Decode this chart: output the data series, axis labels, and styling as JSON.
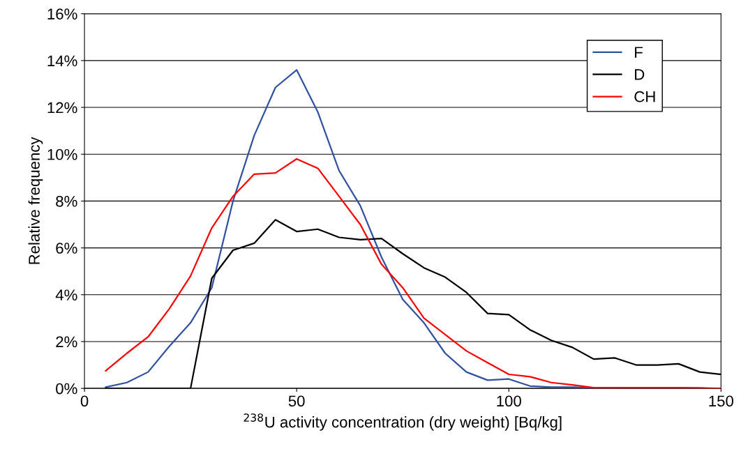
{
  "chart_data": {
    "type": "line",
    "xlabel": "$^{238}$U activity concentration (dry weight) [Bq/kg]",
    "ylabel": "Relative frequency",
    "x": [
      5,
      10,
      15,
      20,
      25,
      30,
      35,
      40,
      45,
      50,
      55,
      60,
      65,
      70,
      75,
      80,
      85,
      90,
      95,
      100,
      105,
      110,
      115,
      120,
      125,
      130,
      135,
      140,
      145,
      150
    ],
    "series": [
      {
        "name": "F",
        "color": "#3050a0",
        "values": [
          0.05,
          0.25,
          0.7,
          1.8,
          2.8,
          4.3,
          8.0,
          10.8,
          12.85,
          13.6,
          11.8,
          9.3,
          7.8,
          5.6,
          3.8,
          2.8,
          1.5,
          0.7,
          0.35,
          0.4,
          0.1,
          0.05,
          0.05,
          0.02,
          0.02,
          null,
          null,
          null,
          null,
          null
        ]
      },
      {
        "name": "D",
        "color": "#000000",
        "values": [
          0,
          0,
          0,
          0,
          0,
          4.7,
          5.9,
          6.2,
          7.2,
          6.7,
          6.8,
          6.45,
          6.35,
          6.4,
          5.75,
          5.15,
          4.75,
          4.1,
          3.2,
          3.15,
          2.5,
          2.05,
          1.75,
          1.25,
          1.3,
          1.0,
          1.0,
          1.05,
          0.7,
          0.6
        ]
      },
      {
        "name": "CH",
        "color": "#ff0000",
        "values": [
          0.75,
          1.5,
          2.2,
          3.4,
          4.8,
          6.85,
          8.2,
          9.15,
          9.2,
          9.8,
          9.4,
          8.2,
          7.0,
          5.3,
          4.3,
          3.0,
          2.3,
          1.6,
          1.1,
          0.6,
          0.5,
          0.25,
          0.15,
          0.03,
          0.03,
          0.03,
          0.03,
          0.03,
          0.02,
          0
        ]
      }
    ],
    "xlim": [
      0,
      150
    ],
    "xticks": [
      0,
      50,
      100,
      150
    ],
    "ylim": [
      0,
      16
    ],
    "yticks": [
      {
        "value": 0,
        "label": "0%"
      },
      {
        "value": 2,
        "label": "2%"
      },
      {
        "value": 4,
        "label": "4%"
      },
      {
        "value": 6,
        "label": "6%"
      },
      {
        "value": 8,
        "label": "8%"
      },
      {
        "value": 10,
        "label": "10%"
      },
      {
        "value": 12,
        "label": "12%"
      },
      {
        "value": 14,
        "label": "14%"
      },
      {
        "value": 16,
        "label": "16%"
      }
    ],
    "grid": "y",
    "legend": "top right",
    "marker": "none",
    "line_style": "solid"
  }
}
